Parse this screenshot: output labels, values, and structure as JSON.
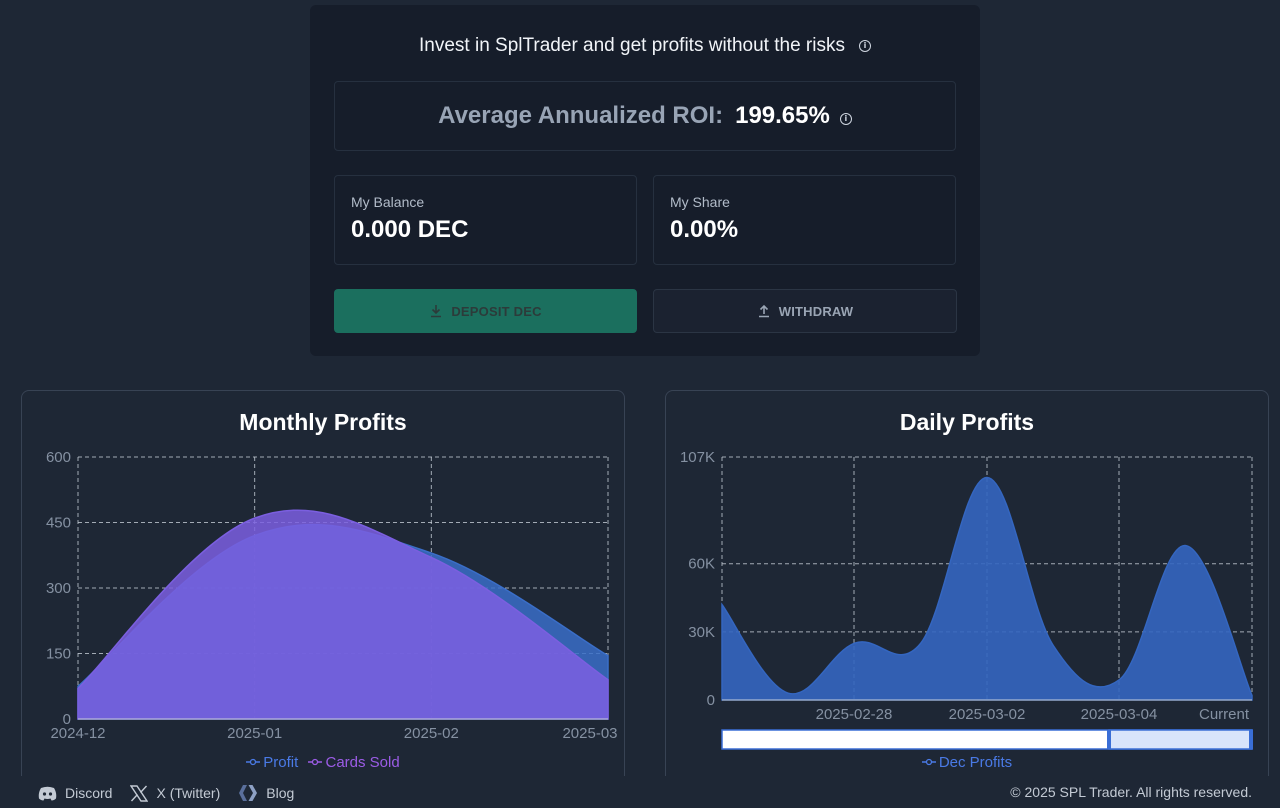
{
  "invest": {
    "title": "Invest in SplTrader and get profits without the risks",
    "roi_label": "Average Annualized ROI:",
    "roi_value": "199.65%",
    "balance_label": "My Balance",
    "balance_value": "0.000 DEC",
    "share_label": "My Share",
    "share_value": "0.00%",
    "deposit_label": "DEPOSIT DEC",
    "withdraw_label": "WITHDRAW"
  },
  "colors": {
    "profit": "#3a6ec8",
    "cards_sold": "#7b5fe0",
    "daily": "#3466c0",
    "legend_profit": "#4a7ae6",
    "legend_cards": "#9b5ce6"
  },
  "chart_data": [
    {
      "type": "area",
      "title": "Monthly Profits",
      "categories": [
        "2024-12",
        "2025-01",
        "2025-02",
        "2025-03"
      ],
      "ylim": [
        0,
        600
      ],
      "yticks": [
        "0",
        "150",
        "300",
        "450",
        "600"
      ],
      "grid": true,
      "legend_placement": "bottom",
      "series": [
        {
          "name": "Profit",
          "values": [
            75,
            420,
            380,
            145
          ]
        },
        {
          "name": "Cards Sold",
          "values": [
            70,
            460,
            370,
            90
          ]
        }
      ]
    },
    {
      "type": "area",
      "title": "Daily Profits",
      "x_tick_labels": [
        "2025-02-28",
        "2025-03-02",
        "2025-03-04",
        "Current"
      ],
      "yticks": [
        "0",
        "30K",
        "60K",
        "107K"
      ],
      "ylim": [
        0,
        107000
      ],
      "grid": true,
      "legend_placement": "bottom",
      "series": [
        {
          "name": "Dec Profits",
          "values": [
            42000,
            3000,
            25000,
            25000,
            98000,
            24000,
            9000,
            68000,
            2000
          ]
        }
      ]
    }
  ],
  "footer": {
    "links": [
      {
        "label": "Discord",
        "icon": "discord-icon"
      },
      {
        "label": "X (Twitter)",
        "icon": "x-icon"
      },
      {
        "label": "Blog",
        "icon": "hive-icon"
      }
    ],
    "copyright": "© 2025 SPL Trader. All rights reserved."
  }
}
